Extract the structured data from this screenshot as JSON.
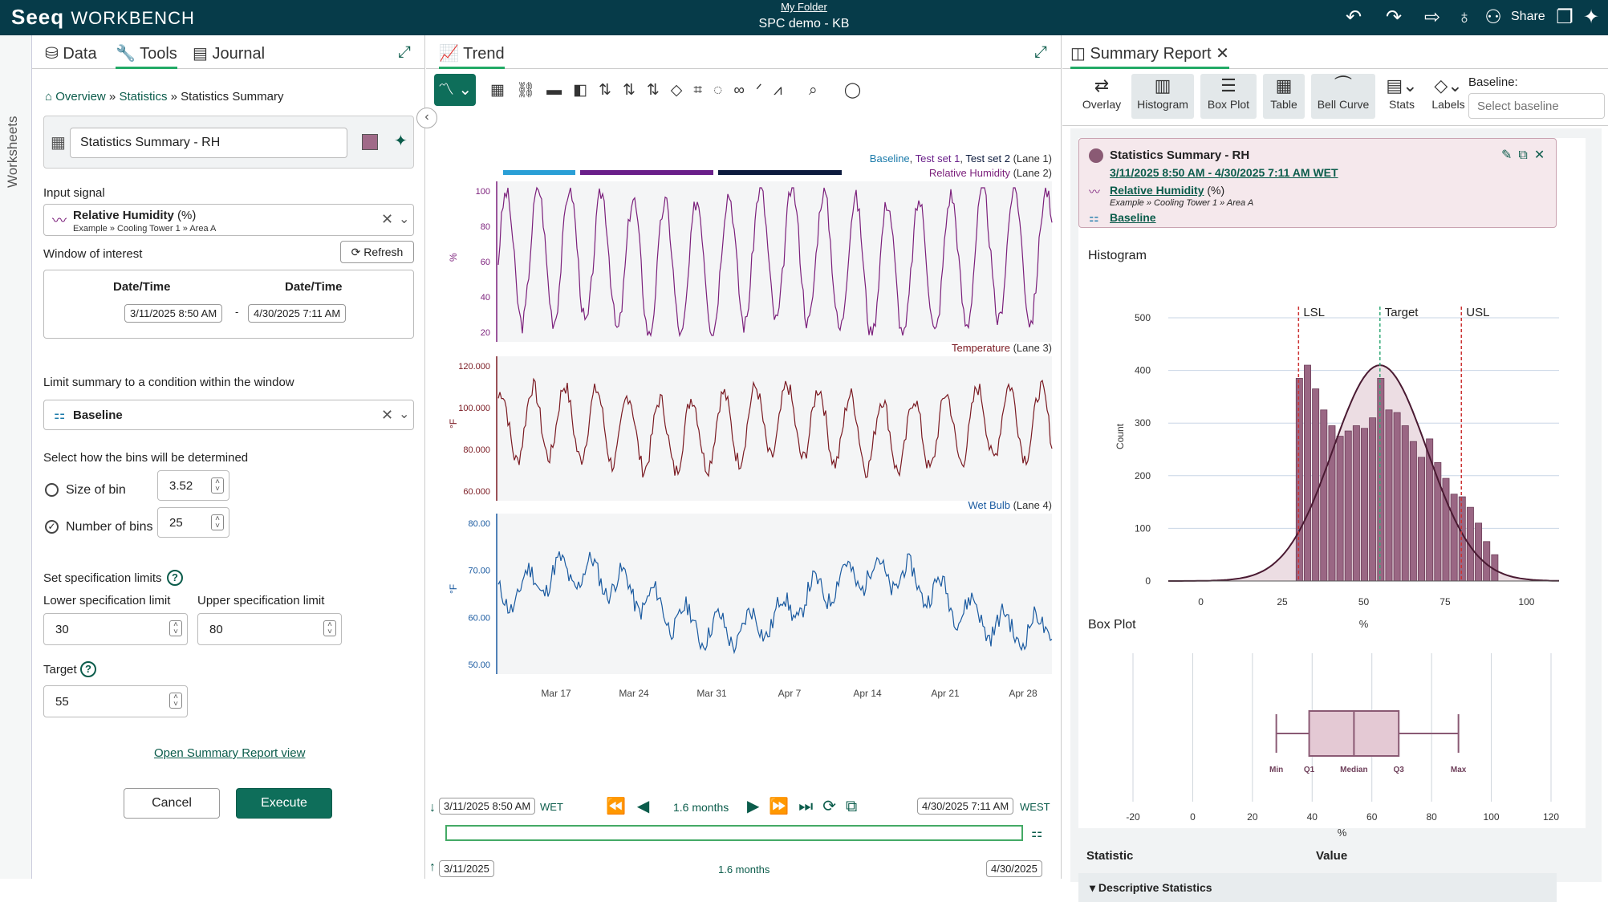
{
  "app": {
    "logo": "Seeq",
    "logo_sub": "WORKBENCH",
    "folder": "My Folder",
    "worksheet": "SPC demo - KB",
    "share": "Share"
  },
  "rail": {
    "label": "Worksheets"
  },
  "left_tabs": {
    "data": "Data",
    "tools": "Tools",
    "journal": "Journal"
  },
  "breadcrumb": {
    "overview": "Overview",
    "statistics": "Statistics",
    "current": "Statistics Summary",
    "sep": "»"
  },
  "tool": {
    "name": "Statistics Summary - RH",
    "input_signal_label": "Input signal",
    "signal_name": "Relative Humidity",
    "signal_unit": "(%)",
    "signal_path": "Example » Cooling Tower 1 » Area A",
    "window_label": "Window of interest",
    "refresh": "Refresh",
    "dt_label_start": "Date/Time",
    "dt_label_end": "Date/Time",
    "start": "3/11/2025 8:50 AM",
    "end": "4/30/2025 7:11 AM",
    "dash": "-",
    "limit_label": "Limit summary to a condition within the window",
    "condition": "Baseline",
    "bins_label": "Select how the bins will be determined",
    "size_of_bin": "Size of bin",
    "size_value": "3.52",
    "number_of_bins": "Number of bins",
    "bins_value": "25",
    "spec_label": "Set specification limits",
    "lsl_label": "Lower specification limit",
    "usl_label": "Upper specification limit",
    "lsl": "30",
    "usl": "80",
    "target_label": "Target",
    "target": "55",
    "open_report": "Open Summary Report view",
    "cancel": "Cancel",
    "execute": "Execute"
  },
  "trend": {
    "tab": "Trend",
    "lane1_legend": {
      "a": "Baseline",
      "b": "Test set 1",
      "c": "Test set 2",
      "lane": "(Lane 1)",
      "sep": ", "
    },
    "lane2": {
      "name": "Relative Humidity",
      "lane": "(Lane 2)",
      "unit": "%",
      "ticks": [
        "100",
        "80",
        "60",
        "40",
        "20"
      ],
      "color": "#7b1f7b"
    },
    "lane3": {
      "name": "Temperature",
      "lane": "(Lane 3)",
      "unit": "°F",
      "ticks": [
        "120.000",
        "100.000",
        "80.000",
        "60.000"
      ],
      "color": "#7a1a22"
    },
    "lane4": {
      "name": "Wet Bulb",
      "lane": "(Lane 4)",
      "unit": "°F",
      "ticks": [
        "80.00",
        "70.00",
        "60.00",
        "50.00"
      ],
      "color": "#1a5aa0"
    },
    "xticks": [
      "Mar 17",
      "Mar 24",
      "Mar 31",
      "Apr 7",
      "Apr 14",
      "Apr 21",
      "Apr 28"
    ],
    "start": "3/11/2025 8:50 AM",
    "tz1": "WET",
    "duration": "1.6 months",
    "end": "4/30/2025 7:11 AM",
    "tz2": "WEST",
    "nav_start": "3/11/2025",
    "nav_duration": "1.6 months",
    "nav_end": "4/30/2025"
  },
  "summary": {
    "tab": "Summary Report",
    "tools": [
      "Overlay",
      "Histogram",
      "Box Plot",
      "Table",
      "Bell Curve",
      "Stats",
      "Labels"
    ],
    "baseline_label": "Baseline:",
    "baseline_placeholder": "Select baseline",
    "card_title": "Statistics Summary - RH",
    "card_range": "3/11/2025 8:50 AM - 4/30/2025 7:11 AM WET",
    "card_signal": "Relative Humidity",
    "card_unit": "(%)",
    "card_path": "Example » Cooling Tower 1 » Area A",
    "card_condition": "Baseline",
    "histogram_title": "Histogram",
    "box_title": "Box Plot",
    "stat_col": "Statistic",
    "value_col": "Value",
    "section": "Descriptive Statistics"
  },
  "chart_data": [
    {
      "type": "bar",
      "title": "Histogram",
      "xlabel": "%",
      "ylabel": "Count",
      "xlim": [
        -10,
        110
      ],
      "ylim": [
        0,
        500
      ],
      "xticks": [
        "0",
        "25",
        "50",
        "75",
        "100"
      ],
      "yticks": [
        "0",
        "100",
        "200",
        "300",
        "400",
        "500"
      ],
      "bin_start": [
        29,
        31.5,
        34,
        36.5,
        39,
        41.5,
        44,
        46.5,
        49,
        51.5,
        54,
        56.5,
        59,
        61.5,
        64,
        66.5,
        69,
        71.5,
        74,
        76.5,
        79,
        81.5,
        84,
        86.5,
        89
      ],
      "values": [
        385,
        410,
        365,
        325,
        295,
        275,
        285,
        295,
        290,
        310,
        385,
        325,
        320,
        295,
        265,
        235,
        270,
        225,
        195,
        165,
        160,
        140,
        110,
        75,
        50
      ],
      "lsl": 30,
      "target": 55,
      "usl": 80,
      "lsl_label": "LSL",
      "target_label": "Target",
      "usl_label": "USL",
      "bell": {
        "mean": 55,
        "sd": 14.5,
        "peak": 410
      }
    },
    {
      "type": "boxplot",
      "title": "Box Plot",
      "xlabel": "%",
      "xlim": [
        -20,
        120
      ],
      "xticks": [
        "-20",
        "0",
        "20",
        "40",
        "60",
        "80",
        "100",
        "120"
      ],
      "min": 28,
      "q1": 39,
      "median": 54,
      "q3": 69,
      "max": 89,
      "labels": {
        "min": "Min",
        "q1": "Q1",
        "median": "Median",
        "q3": "Q3",
        "max": "Max"
      }
    }
  ]
}
